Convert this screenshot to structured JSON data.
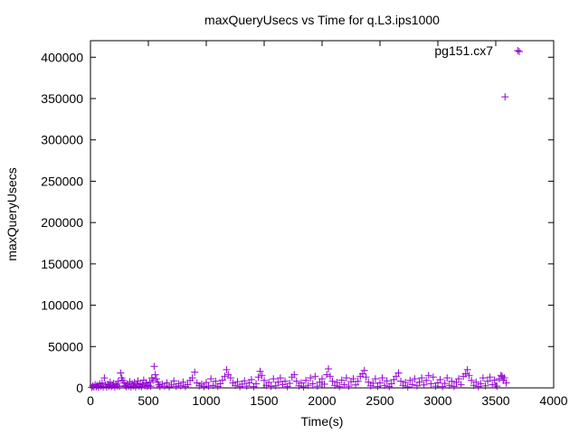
{
  "chart_data": {
    "type": "scatter",
    "title": "maxQueryUsecs vs Time for q.L3.ips1000",
    "xlabel": "Time(s)",
    "ylabel": "maxQueryUsecs",
    "xlim": [
      0,
      4000
    ],
    "ylim": [
      0,
      420000
    ],
    "xticks": [
      0,
      500,
      1000,
      1500,
      2000,
      2500,
      3000,
      3500,
      4000
    ],
    "yticks": [
      0,
      50000,
      100000,
      150000,
      200000,
      250000,
      300000,
      350000,
      400000
    ],
    "grid": false,
    "legend_position": "top-right",
    "marker": "+",
    "series": [
      {
        "name": "pg151.cx7",
        "color": "#9400d3",
        "points": [
          [
            10,
            500
          ],
          [
            20,
            2500
          ],
          [
            30,
            1000
          ],
          [
            40,
            4000
          ],
          [
            50,
            1500
          ],
          [
            60,
            3000
          ],
          [
            70,
            800
          ],
          [
            80,
            5000
          ],
          [
            90,
            2000
          ],
          [
            100,
            6000
          ],
          [
            110,
            1200
          ],
          [
            120,
            12000
          ],
          [
            130,
            3500
          ],
          [
            140,
            900
          ],
          [
            150,
            4500
          ],
          [
            160,
            2000
          ],
          [
            170,
            7000
          ],
          [
            180,
            1500
          ],
          [
            190,
            3000
          ],
          [
            200,
            5500
          ],
          [
            210,
            1000
          ],
          [
            220,
            4000
          ],
          [
            230,
            2500
          ],
          [
            240,
            8000
          ],
          [
            250,
            1800
          ],
          [
            260,
            18000
          ],
          [
            270,
            12000
          ],
          [
            280,
            9000
          ],
          [
            290,
            6000
          ],
          [
            300,
            3000
          ],
          [
            310,
            1500
          ],
          [
            320,
            4500
          ],
          [
            330,
            2000
          ],
          [
            340,
            7500
          ],
          [
            350,
            1000
          ],
          [
            360,
            5000
          ],
          [
            370,
            2500
          ],
          [
            380,
            6500
          ],
          [
            390,
            1200
          ],
          [
            400,
            3500
          ],
          [
            410,
            8500
          ],
          [
            420,
            2000
          ],
          [
            430,
            5000
          ],
          [
            440,
            1500
          ],
          [
            450,
            4000
          ],
          [
            460,
            9500
          ],
          [
            470,
            2500
          ],
          [
            480,
            6000
          ],
          [
            490,
            1800
          ],
          [
            500,
            3000
          ],
          [
            510,
            7000
          ],
          [
            520,
            2000
          ],
          [
            530,
            12000
          ],
          [
            540,
            9000
          ],
          [
            550,
            26000
          ],
          [
            560,
            16000
          ],
          [
            570,
            11000
          ],
          [
            580,
            7000
          ],
          [
            590,
            3500
          ],
          [
            600,
            1500
          ],
          [
            620,
            4500
          ],
          [
            640,
            2000
          ],
          [
            660,
            6000
          ],
          [
            680,
            1200
          ],
          [
            700,
            3500
          ],
          [
            720,
            8500
          ],
          [
            740,
            1800
          ],
          [
            760,
            5000
          ],
          [
            780,
            2500
          ],
          [
            800,
            7000
          ],
          [
            820,
            1500
          ],
          [
            840,
            4000
          ],
          [
            860,
            9000
          ],
          [
            880,
            12000
          ],
          [
            900,
            19000
          ],
          [
            920,
            6000
          ],
          [
            940,
            2500
          ],
          [
            960,
            4500
          ],
          [
            980,
            1500
          ],
          [
            1000,
            6500
          ],
          [
            1020,
            2000
          ],
          [
            1040,
            11000
          ],
          [
            1060,
            3000
          ],
          [
            1080,
            8000
          ],
          [
            1100,
            1800
          ],
          [
            1120,
            5000
          ],
          [
            1140,
            9500
          ],
          [
            1160,
            14000
          ],
          [
            1175,
            22000
          ],
          [
            1190,
            16000
          ],
          [
            1210,
            12000
          ],
          [
            1230,
            6000
          ],
          [
            1250,
            3000
          ],
          [
            1270,
            7500
          ],
          [
            1290,
            1500
          ],
          [
            1310,
            4500
          ],
          [
            1330,
            8500
          ],
          [
            1350,
            2000
          ],
          [
            1370,
            6000
          ],
          [
            1390,
            10000
          ],
          [
            1410,
            1500
          ],
          [
            1430,
            5000
          ],
          [
            1450,
            13000
          ],
          [
            1465,
            20000
          ],
          [
            1480,
            15000
          ],
          [
            1500,
            9000
          ],
          [
            1520,
            3000
          ],
          [
            1540,
            6500
          ],
          [
            1560,
            1800
          ],
          [
            1580,
            11000
          ],
          [
            1600,
            2500
          ],
          [
            1620,
            7000
          ],
          [
            1640,
            12000
          ],
          [
            1660,
            4000
          ],
          [
            1680,
            8000
          ],
          [
            1700,
            1500
          ],
          [
            1720,
            5500
          ],
          [
            1740,
            13000
          ],
          [
            1760,
            16000
          ],
          [
            1780,
            8000
          ],
          [
            1800,
            2500
          ],
          [
            1820,
            6000
          ],
          [
            1840,
            1200
          ],
          [
            1860,
            9000
          ],
          [
            1880,
            3000
          ],
          [
            1900,
            12000
          ],
          [
            1920,
            5000
          ],
          [
            1940,
            14000
          ],
          [
            1960,
            2000
          ],
          [
            1980,
            7000
          ],
          [
            2000,
            11000
          ],
          [
            2020,
            4500
          ],
          [
            2040,
            16000
          ],
          [
            2055,
            23000
          ],
          [
            2070,
            14000
          ],
          [
            2090,
            8000
          ],
          [
            2110,
            3000
          ],
          [
            2130,
            6500
          ],
          [
            2150,
            1500
          ],
          [
            2170,
            9500
          ],
          [
            2190,
            4000
          ],
          [
            2210,
            12000
          ],
          [
            2230,
            2000
          ],
          [
            2250,
            7500
          ],
          [
            2270,
            11000
          ],
          [
            2290,
            3500
          ],
          [
            2310,
            8000
          ],
          [
            2330,
            14000
          ],
          [
            2350,
            17000
          ],
          [
            2365,
            21000
          ],
          [
            2380,
            13000
          ],
          [
            2400,
            7000
          ],
          [
            2420,
            2500
          ],
          [
            2440,
            5500
          ],
          [
            2460,
            11000
          ],
          [
            2480,
            1800
          ],
          [
            2500,
            6000
          ],
          [
            2520,
            12000
          ],
          [
            2540,
            3000
          ],
          [
            2560,
            8500
          ],
          [
            2580,
            1500
          ],
          [
            2600,
            5000
          ],
          [
            2620,
            10000
          ],
          [
            2640,
            14000
          ],
          [
            2660,
            18000
          ],
          [
            2680,
            8000
          ],
          [
            2700,
            3000
          ],
          [
            2720,
            6500
          ],
          [
            2740,
            1200
          ],
          [
            2760,
            9000
          ],
          [
            2780,
            4000
          ],
          [
            2800,
            11000
          ],
          [
            2820,
            2500
          ],
          [
            2840,
            7000
          ],
          [
            2860,
            12000
          ],
          [
            2880,
            3500
          ],
          [
            2900,
            9000
          ],
          [
            2920,
            15000
          ],
          [
            2940,
            5000
          ],
          [
            2960,
            13000
          ],
          [
            2980,
            2000
          ],
          [
            3000,
            6000
          ],
          [
            3020,
            10000
          ],
          [
            3040,
            1500
          ],
          [
            3060,
            5500
          ],
          [
            3080,
            12000
          ],
          [
            3100,
            3000
          ],
          [
            3120,
            8000
          ],
          [
            3140,
            1800
          ],
          [
            3160,
            6500
          ],
          [
            3180,
            11000
          ],
          [
            3200,
            4000
          ],
          [
            3220,
            14000
          ],
          [
            3240,
            17000
          ],
          [
            3255,
            22000
          ],
          [
            3270,
            15000
          ],
          [
            3290,
            9000
          ],
          [
            3310,
            3000
          ],
          [
            3330,
            7000
          ],
          [
            3350,
            1500
          ],
          [
            3370,
            5000
          ],
          [
            3390,
            12000
          ],
          [
            3410,
            2500
          ],
          [
            3430,
            8000
          ],
          [
            3450,
            13000
          ],
          [
            3470,
            4000
          ],
          [
            3490,
            9500
          ],
          [
            3510,
            2000
          ],
          [
            3530,
            11000
          ],
          [
            3545,
            15000
          ],
          [
            3555,
            14000
          ],
          [
            3565,
            9000
          ],
          [
            3575,
            12000
          ],
          [
            3580,
            352000
          ],
          [
            3590,
            6000
          ],
          [
            3690,
            408000
          ]
        ]
      }
    ]
  }
}
